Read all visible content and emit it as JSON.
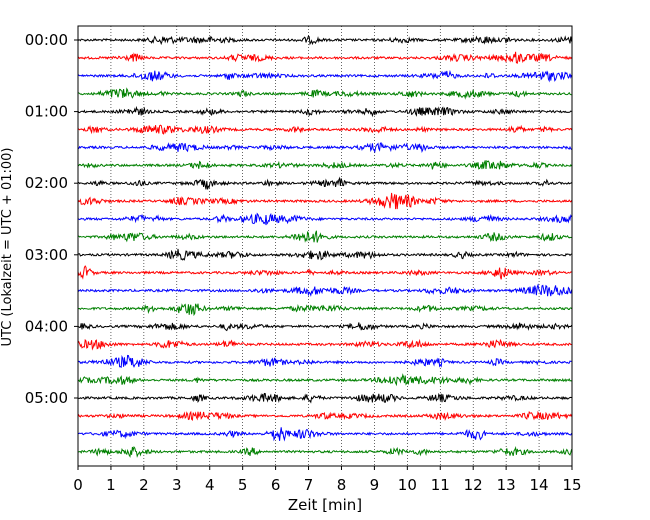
{
  "chart_data": {
    "type": "line",
    "subtype": "helicorder",
    "xlabel": "Zeit  [min]",
    "ylabel": "UTC (Lokalzeit = UTC + 01:00)",
    "xlim": [
      0,
      15
    ],
    "x_ticks": [
      0,
      1,
      2,
      3,
      4,
      5,
      6,
      7,
      8,
      9,
      10,
      11,
      12,
      13,
      14,
      15
    ],
    "x_grid": true,
    "x_grid_style": "dotted",
    "y_tick_labels": [
      "00:00",
      "01:00",
      "02:00",
      "03:00",
      "04:00",
      "05:00"
    ],
    "traces_per_hour": 4,
    "minutes_per_trace": 15,
    "trace_count": 24,
    "trace_colors": [
      "#000000",
      "#ff0000",
      "#0000ff",
      "#008000"
    ]
  }
}
